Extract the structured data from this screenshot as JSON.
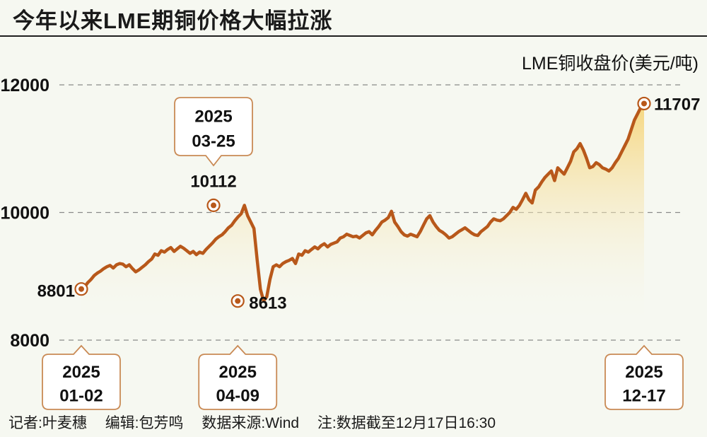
{
  "title": "今年以来LME期铜价格大幅拉涨",
  "chart_data": {
    "type": "area",
    "ylabel": "LME铜收盘价(美元/吨)",
    "ylim": [
      8000,
      12000
    ],
    "yticks": [
      8000,
      10000,
      12000
    ],
    "grid": true,
    "start_date": "2025-01-02",
    "end_date": "2025-12-17",
    "values": [
      8801,
      8830,
      8900,
      8950,
      9010,
      9050,
      9080,
      9120,
      9150,
      9170,
      9130,
      9180,
      9200,
      9190,
      9150,
      9180,
      9120,
      9070,
      9100,
      9140,
      9180,
      9230,
      9270,
      9350,
      9330,
      9400,
      9380,
      9420,
      9450,
      9390,
      9430,
      9470,
      9440,
      9400,
      9360,
      9390,
      9340,
      9380,
      9360,
      9420,
      9470,
      9520,
      9580,
      9620,
      9650,
      9700,
      9760,
      9800,
      9870,
      9930,
      9980,
      10112,
      9950,
      9850,
      9750,
      9250,
      8800,
      8613,
      8680,
      8950,
      9150,
      9180,
      9150,
      9200,
      9230,
      9250,
      9280,
      9200,
      9350,
      9330,
      9400,
      9380,
      9420,
      9460,
      9430,
      9480,
      9510,
      9460,
      9500,
      9520,
      9540,
      9600,
      9620,
      9660,
      9640,
      9620,
      9630,
      9600,
      9640,
      9680,
      9700,
      9650,
      9720,
      9780,
      9850,
      9880,
      9920,
      10020,
      9850,
      9780,
      9700,
      9650,
      9630,
      9660,
      9640,
      9620,
      9700,
      9800,
      9900,
      9950,
      9850,
      9780,
      9720,
      9690,
      9650,
      9600,
      9620,
      9660,
      9700,
      9730,
      9760,
      9720,
      9680,
      9650,
      9640,
      9700,
      9740,
      9780,
      9850,
      9900,
      9880,
      9870,
      9900,
      9950,
      10000,
      10080,
      10050,
      10110,
      10200,
      10300,
      10200,
      10150,
      10350,
      10400,
      10480,
      10550,
      10600,
      10650,
      10500,
      10700,
      10650,
      10600,
      10700,
      10800,
      10950,
      11000,
      11080,
      10980,
      10850,
      10700,
      10720,
      10780,
      10750,
      10700,
      10680,
      10650,
      10700,
      10780,
      10850,
      10950,
      11050,
      11150,
      11300,
      11450,
      11550,
      11650,
      11707
    ],
    "annotations": [
      {
        "date": "2025-01-02",
        "value": 8801,
        "label": "8801"
      },
      {
        "date": "2025-03-25",
        "value": 10112,
        "label": "10112"
      },
      {
        "date": "2025-04-09",
        "value": 8613,
        "label": "8613"
      },
      {
        "date": "2025-12-17",
        "value": 11707,
        "label": "11707"
      }
    ],
    "date_callouts": [
      {
        "year": "2025",
        "day": "01-02"
      },
      {
        "year": "2025",
        "day": "03-25"
      },
      {
        "year": "2025",
        "day": "04-09"
      },
      {
        "year": "2025",
        "day": "12-17"
      }
    ],
    "colors": {
      "line": "#b8581a",
      "fill_top": "#f6d57a",
      "grid": "#8a8a8a"
    }
  },
  "footer": {
    "reporter": "记者:叶麦穗",
    "editor": "编辑:包芳鸣",
    "source": "数据来源:Wind",
    "note": "注:数据截至12月17日16:30"
  }
}
